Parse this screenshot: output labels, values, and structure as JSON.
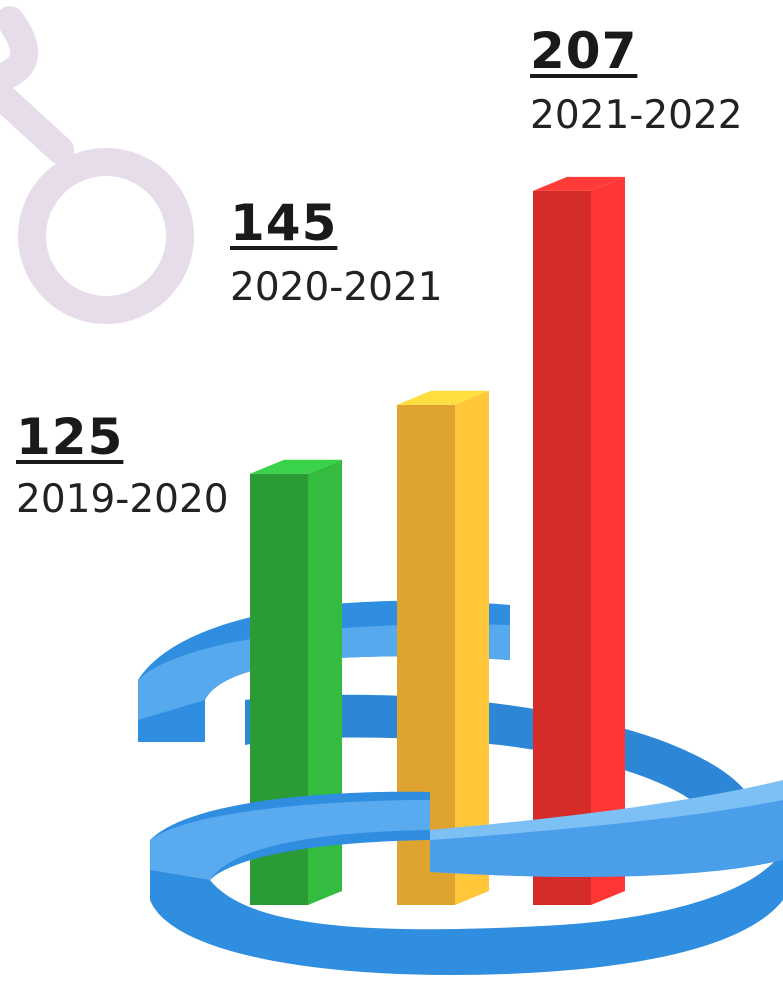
{
  "chart_data": {
    "type": "bar",
    "categories": [
      "2019-2020",
      "2020-2021",
      "2021-2022"
    ],
    "values": [
      125,
      145,
      207
    ],
    "title": "",
    "xlabel": "",
    "ylabel": "",
    "ylim": [
      0,
      220
    ],
    "grid": false,
    "legend": "none",
    "colors": [
      "#2ea83a",
      "#f2b233",
      "#e7302e"
    ],
    "ring_color": "#2f8ee0",
    "decor_color": "#e6dcea"
  }
}
